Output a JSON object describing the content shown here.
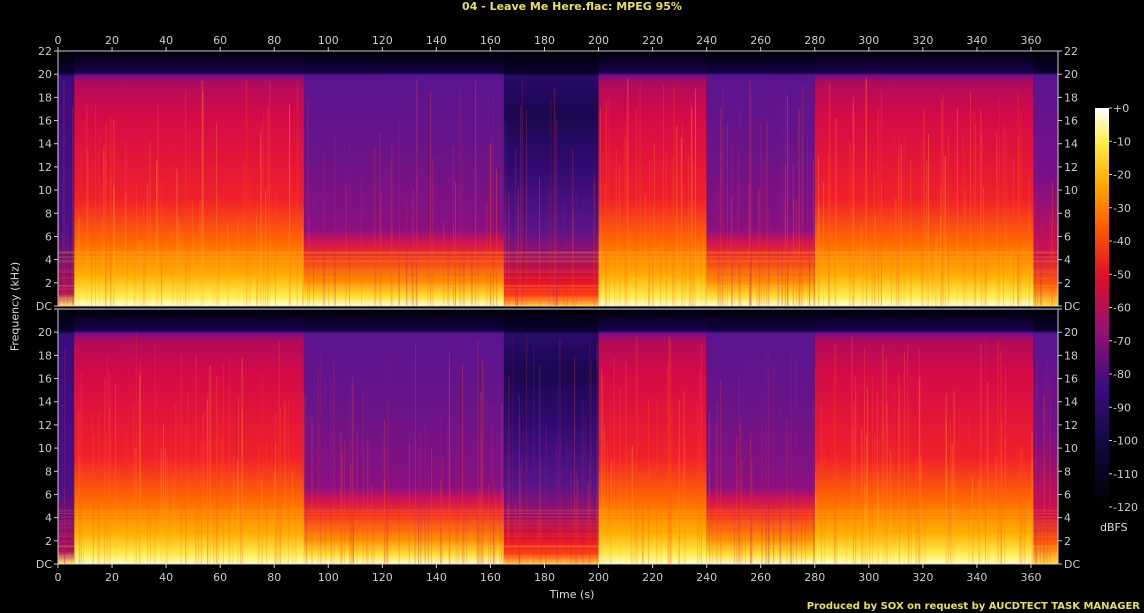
{
  "header": {
    "title": "04 - Leave Me Here.flac: MPEG 95%"
  },
  "footer": {
    "credit": "Produced by SOX on request by AUCDTECT TASK MANAGER"
  },
  "colors": {
    "title": "#e8e055",
    "axis": "#cccccc"
  },
  "chart_data": {
    "type": "heatmap",
    "title": "04 - Leave Me Here.flac: MPEG 95%",
    "xlabel": "Time (s)",
    "ylabel": "Frequency (kHz)",
    "xlim": [
      0,
      370
    ],
    "ylim": [
      0,
      22
    ],
    "x_ticks": [
      "0",
      "20",
      "40",
      "60",
      "80",
      "100",
      "120",
      "140",
      "160",
      "180",
      "200",
      "220",
      "240",
      "260",
      "280",
      "300",
      "320",
      "340",
      "360"
    ],
    "y_ticks": [
      "DC",
      "2",
      "4",
      "6",
      "8",
      "10",
      "12",
      "14",
      "16",
      "18",
      "20",
      "22"
    ],
    "channels": [
      "left",
      "right"
    ],
    "colorbar": {
      "label": "dBFS",
      "range": [
        -120,
        0
      ],
      "ticks": [
        "+0",
        "-10",
        "-20",
        "-30",
        "-40",
        "-50",
        "-60",
        "-70",
        "-80",
        "-90",
        "-100",
        "-110",
        "-120"
      ]
    },
    "segments": [
      {
        "start": 0,
        "end": 6,
        "level": "quiet",
        "cutoff_khz": 20
      },
      {
        "start": 6,
        "end": 91,
        "level": "loud",
        "cutoff_khz": 20
      },
      {
        "start": 91,
        "end": 165,
        "level": "medium",
        "cutoff_khz": 20
      },
      {
        "start": 165,
        "end": 200,
        "level": "soft",
        "cutoff_khz": 20
      },
      {
        "start": 200,
        "end": 240,
        "level": "loud",
        "cutoff_khz": 20
      },
      {
        "start": 240,
        "end": 280,
        "level": "medium",
        "cutoff_khz": 20
      },
      {
        "start": 280,
        "end": 361,
        "level": "loud",
        "cutoff_khz": 20
      },
      {
        "start": 361,
        "end": 370,
        "level": "fade",
        "cutoff_khz": 20
      }
    ]
  }
}
